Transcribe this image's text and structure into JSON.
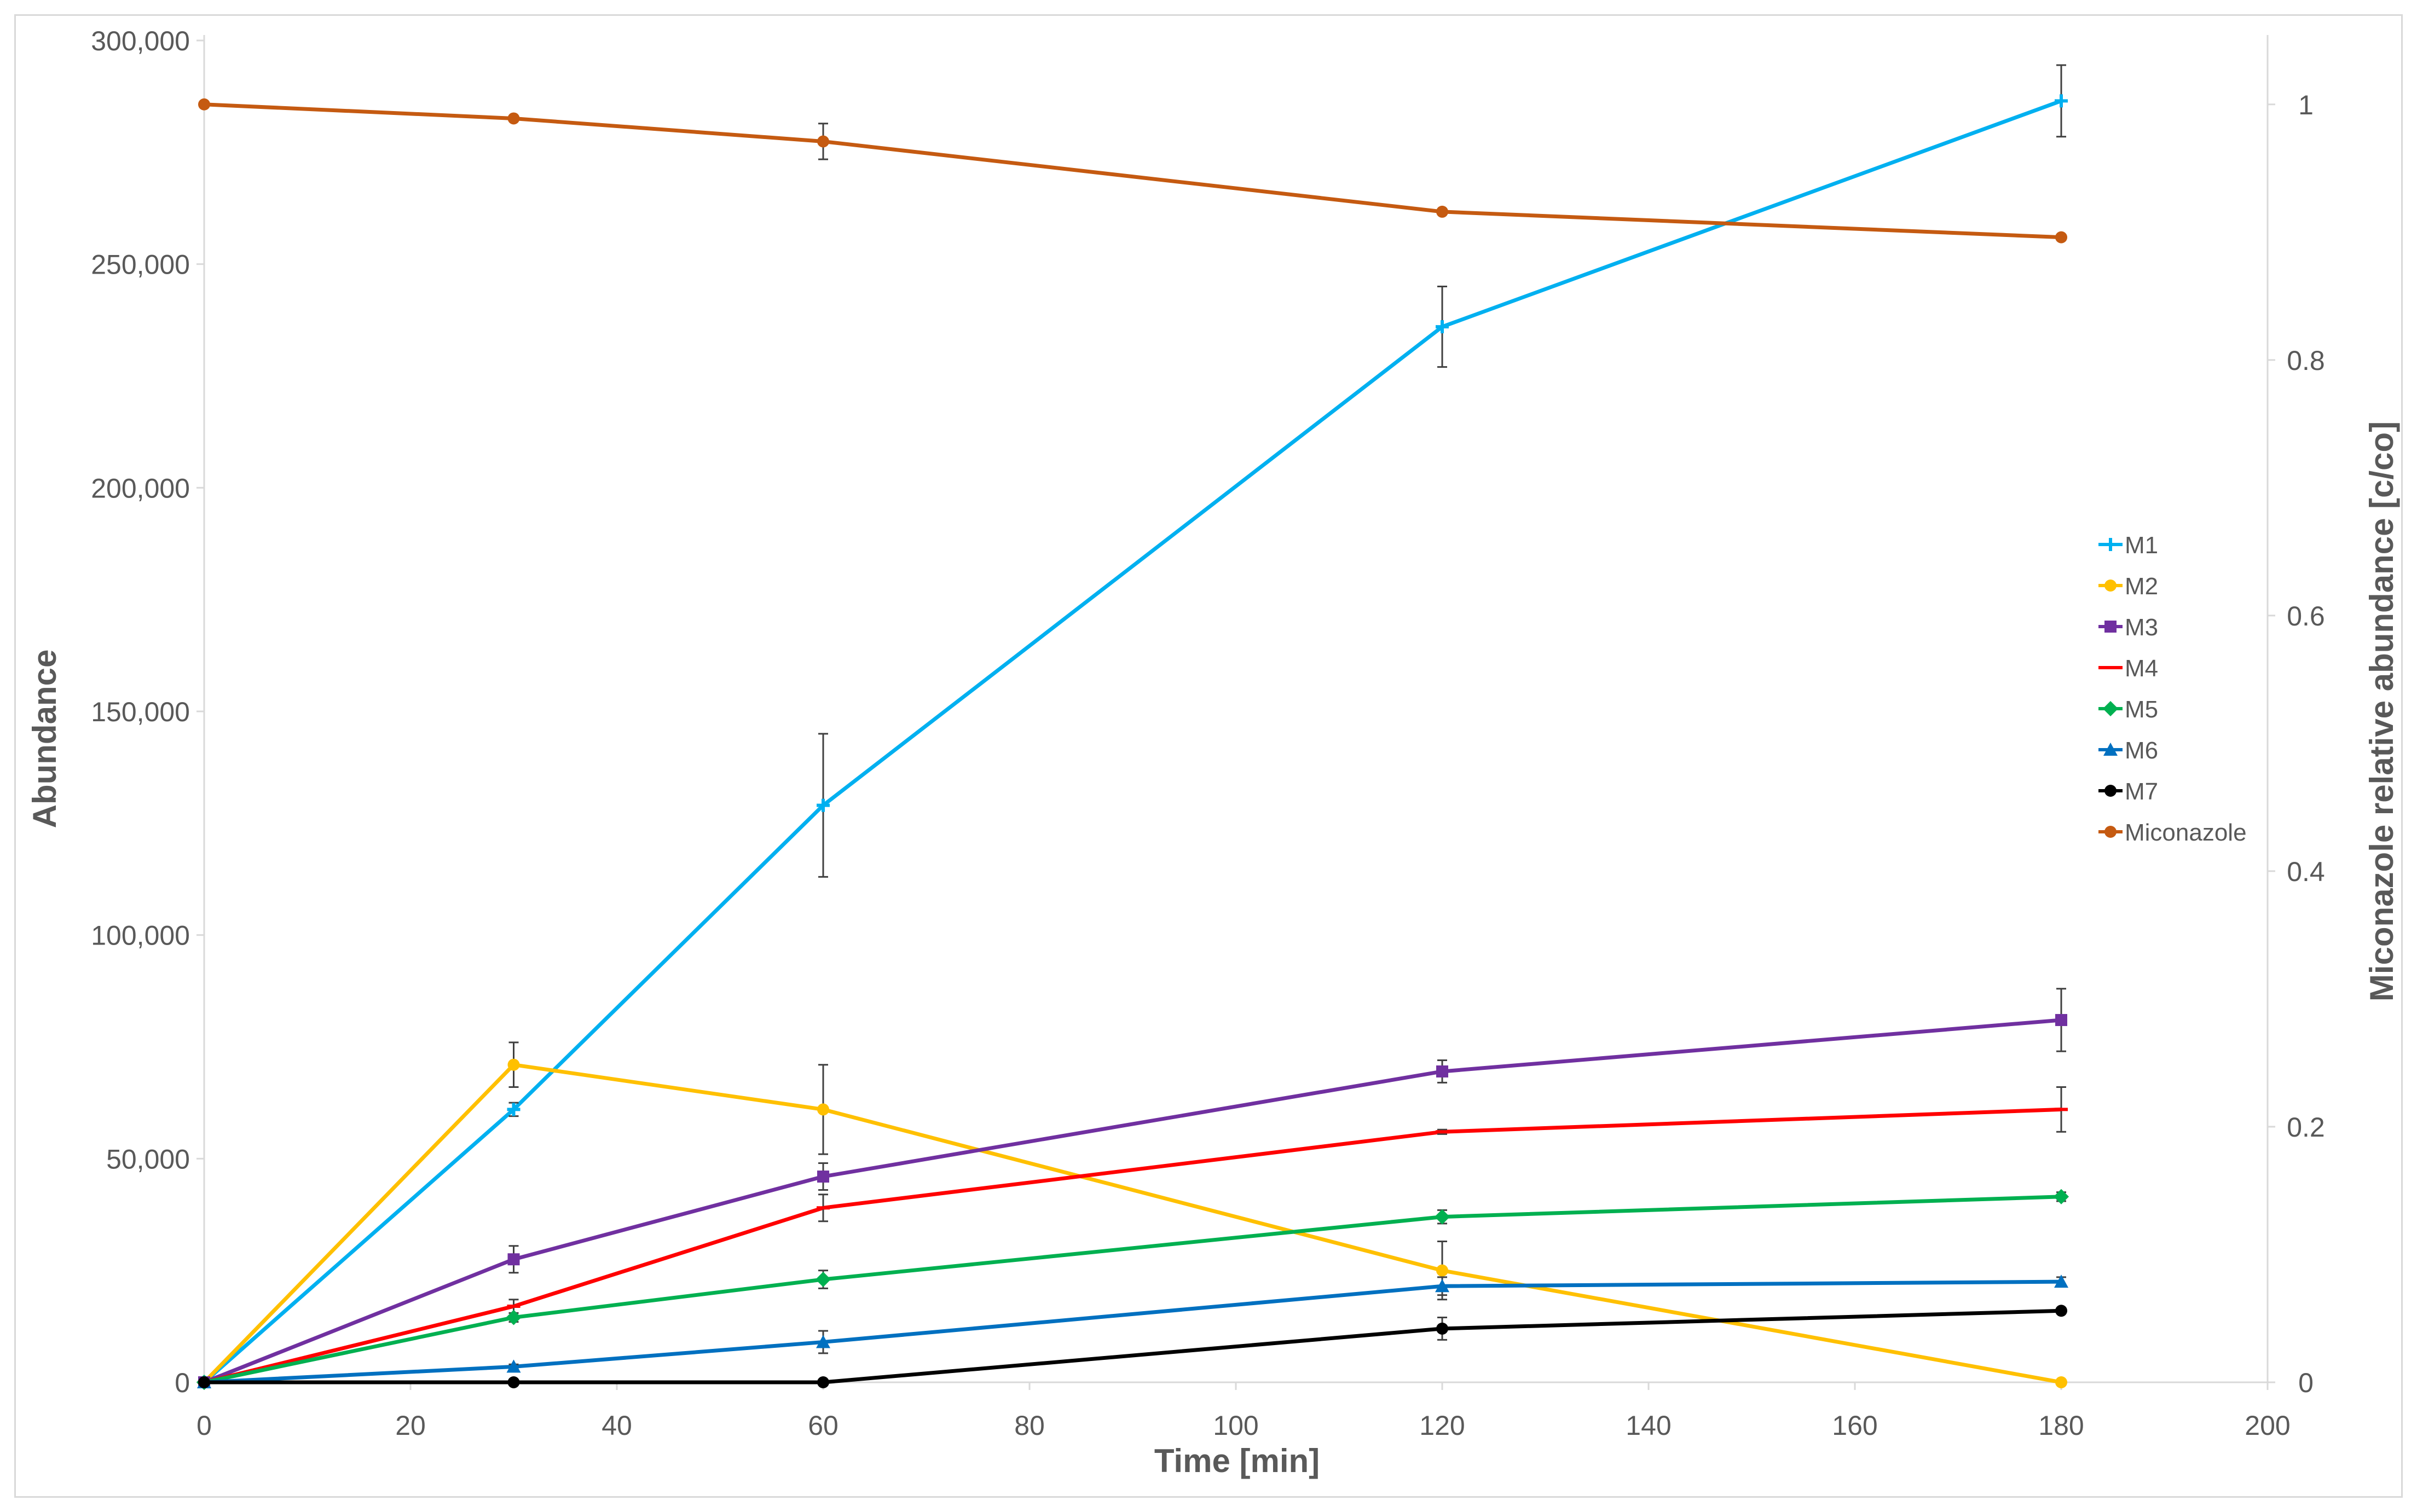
{
  "chart_data": {
    "type": "line",
    "title": "",
    "xlabel": "Time [min]",
    "ylabel": "Abundance",
    "y2label": "Miconazole relative abundance [c/co]",
    "xlim": [
      0,
      200
    ],
    "ylim": [
      0,
      300000
    ],
    "y2lim": [
      0,
      1.05
    ],
    "x_ticks": [
      0,
      20,
      40,
      60,
      80,
      100,
      120,
      140,
      160,
      180,
      200
    ],
    "y_ticks": [
      0,
      50000,
      100000,
      150000,
      200000,
      250000,
      300000
    ],
    "y_tick_labels": [
      "0",
      "50,000",
      "100,000",
      "150,000",
      "200,000",
      "250,000",
      "300,000"
    ],
    "y2_ticks": [
      0,
      0.2,
      0.4,
      0.6,
      0.8,
      1
    ],
    "y2_tick_labels": [
      "0",
      "0.2",
      "0.4",
      "0.6",
      "0.8",
      "1"
    ],
    "grid": false,
    "legend_position": "right",
    "x": [
      0,
      30,
      60,
      120,
      180
    ],
    "series": [
      {
        "name": "M1",
        "axis": "left",
        "color": "#00b0f0",
        "marker": "plus",
        "values": [
          0,
          61000,
          129000,
          236000,
          286500
        ],
        "errors": [
          0,
          1500,
          16000,
          9000,
          8000
        ]
      },
      {
        "name": "M2",
        "axis": "left",
        "color": "#ffc000",
        "marker": "circle",
        "values": [
          0,
          71000,
          61000,
          25000,
          0
        ],
        "errors": [
          0,
          5000,
          10000,
          6500,
          0
        ]
      },
      {
        "name": "M3",
        "axis": "left",
        "color": "#7030a0",
        "marker": "square",
        "values": [
          0,
          27500,
          46000,
          69500,
          81000
        ],
        "errors": [
          0,
          3000,
          3000,
          2500,
          7000
        ]
      },
      {
        "name": "M4",
        "axis": "left",
        "color": "#ff0000",
        "marker": "dash",
        "values": [
          0,
          17000,
          39000,
          56000,
          61000
        ],
        "errors": [
          0,
          1500,
          3000,
          500,
          5000
        ]
      },
      {
        "name": "M5",
        "axis": "left",
        "color": "#00b050",
        "marker": "diamond",
        "values": [
          0,
          14500,
          23000,
          37000,
          41500
        ],
        "errors": [
          0,
          1000,
          2000,
          1500,
          1000
        ]
      },
      {
        "name": "M6",
        "axis": "left",
        "color": "#0070c0",
        "marker": "triangle",
        "values": [
          0,
          3500,
          9000,
          21500,
          22500
        ],
        "errors": [
          0,
          500,
          2500,
          2000,
          1000
        ]
      },
      {
        "name": "M7",
        "axis": "left",
        "color": "#000000",
        "marker": "circle",
        "values": [
          0,
          0,
          0,
          12000,
          16000
        ],
        "errors": [
          0,
          0,
          0,
          2500,
          500
        ]
      },
      {
        "name": "Miconazole",
        "axis": "right",
        "color": "#c55a11",
        "marker": "circle",
        "values": [
          1.0,
          0.989,
          0.971,
          0.916,
          0.896
        ],
        "errors": [
          0,
          0,
          0.014,
          0,
          0
        ]
      }
    ]
  }
}
